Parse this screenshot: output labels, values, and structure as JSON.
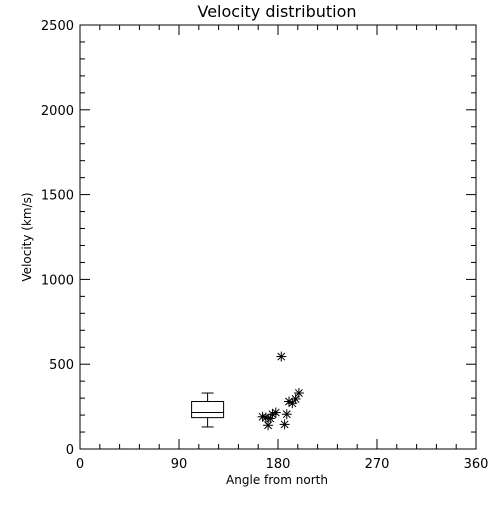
{
  "chart_data": {
    "type": "scatter",
    "title": "Velocity distribution",
    "xlabel": "Angle from north",
    "ylabel": "Velocity (km/s)",
    "xlim": [
      0,
      360
    ],
    "ylim": [
      0,
      2500
    ],
    "x_ticks": [
      0,
      90,
      180,
      270,
      360
    ],
    "y_ticks": [
      0,
      500,
      1000,
      1500,
      2000,
      2500
    ],
    "x_minor_step": 18,
    "y_minor_step": 100,
    "grid": false,
    "legend": "none",
    "colors": {
      "marks": "#000000",
      "background": "#ffffff"
    },
    "series": [
      {
        "marker": "asterisk",
        "x": [
          166,
          169,
          171,
          173,
          175,
          178,
          183,
          186,
          188,
          190,
          193,
          196,
          199
        ],
        "y": [
          190,
          185,
          140,
          180,
          205,
          215,
          545,
          145,
          205,
          280,
          270,
          295,
          330
        ]
      }
    ],
    "boxplot": {
      "x": 116,
      "min": 130,
      "q1": 185,
      "median": 215,
      "q3": 280,
      "max": 330
    }
  }
}
